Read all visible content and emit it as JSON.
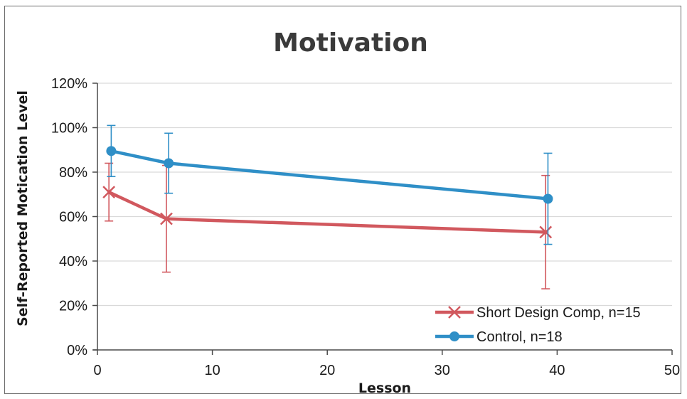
{
  "chart_data": {
    "type": "line",
    "title": "Motivation",
    "xlabel": "Lesson",
    "ylabel": "Self-Reported Motication Level",
    "xlim": [
      0,
      50
    ],
    "ylim": [
      0,
      1.2
    ],
    "x_ticks": [
      0,
      10,
      20,
      30,
      40,
      50
    ],
    "x_tick_labels": [
      "0",
      "10",
      "20",
      "30",
      "40",
      "50"
    ],
    "y_ticks": [
      0,
      0.2,
      0.4,
      0.6,
      0.8,
      1.0,
      1.2
    ],
    "y_tick_labels": [
      "0%",
      "20%",
      "40%",
      "60%",
      "80%",
      "100%",
      "120%"
    ],
    "grid": "horizontal",
    "legend_position": "bottom-right",
    "series": [
      {
        "name": "Short Design Comp, n=15",
        "color": "#d1585e",
        "marker": "x",
        "x": [
          1,
          6,
          39
        ],
        "y": [
          0.71,
          0.59,
          0.53
        ],
        "error": [
          0.13,
          0.24,
          0.255
        ]
      },
      {
        "name": "Control, n=18",
        "color": "#2f8fc7",
        "marker": "circle",
        "x": [
          1.2,
          6.2,
          39.2
        ],
        "y": [
          0.895,
          0.84,
          0.68
        ],
        "error": [
          0.115,
          0.135,
          0.205
        ]
      }
    ]
  }
}
